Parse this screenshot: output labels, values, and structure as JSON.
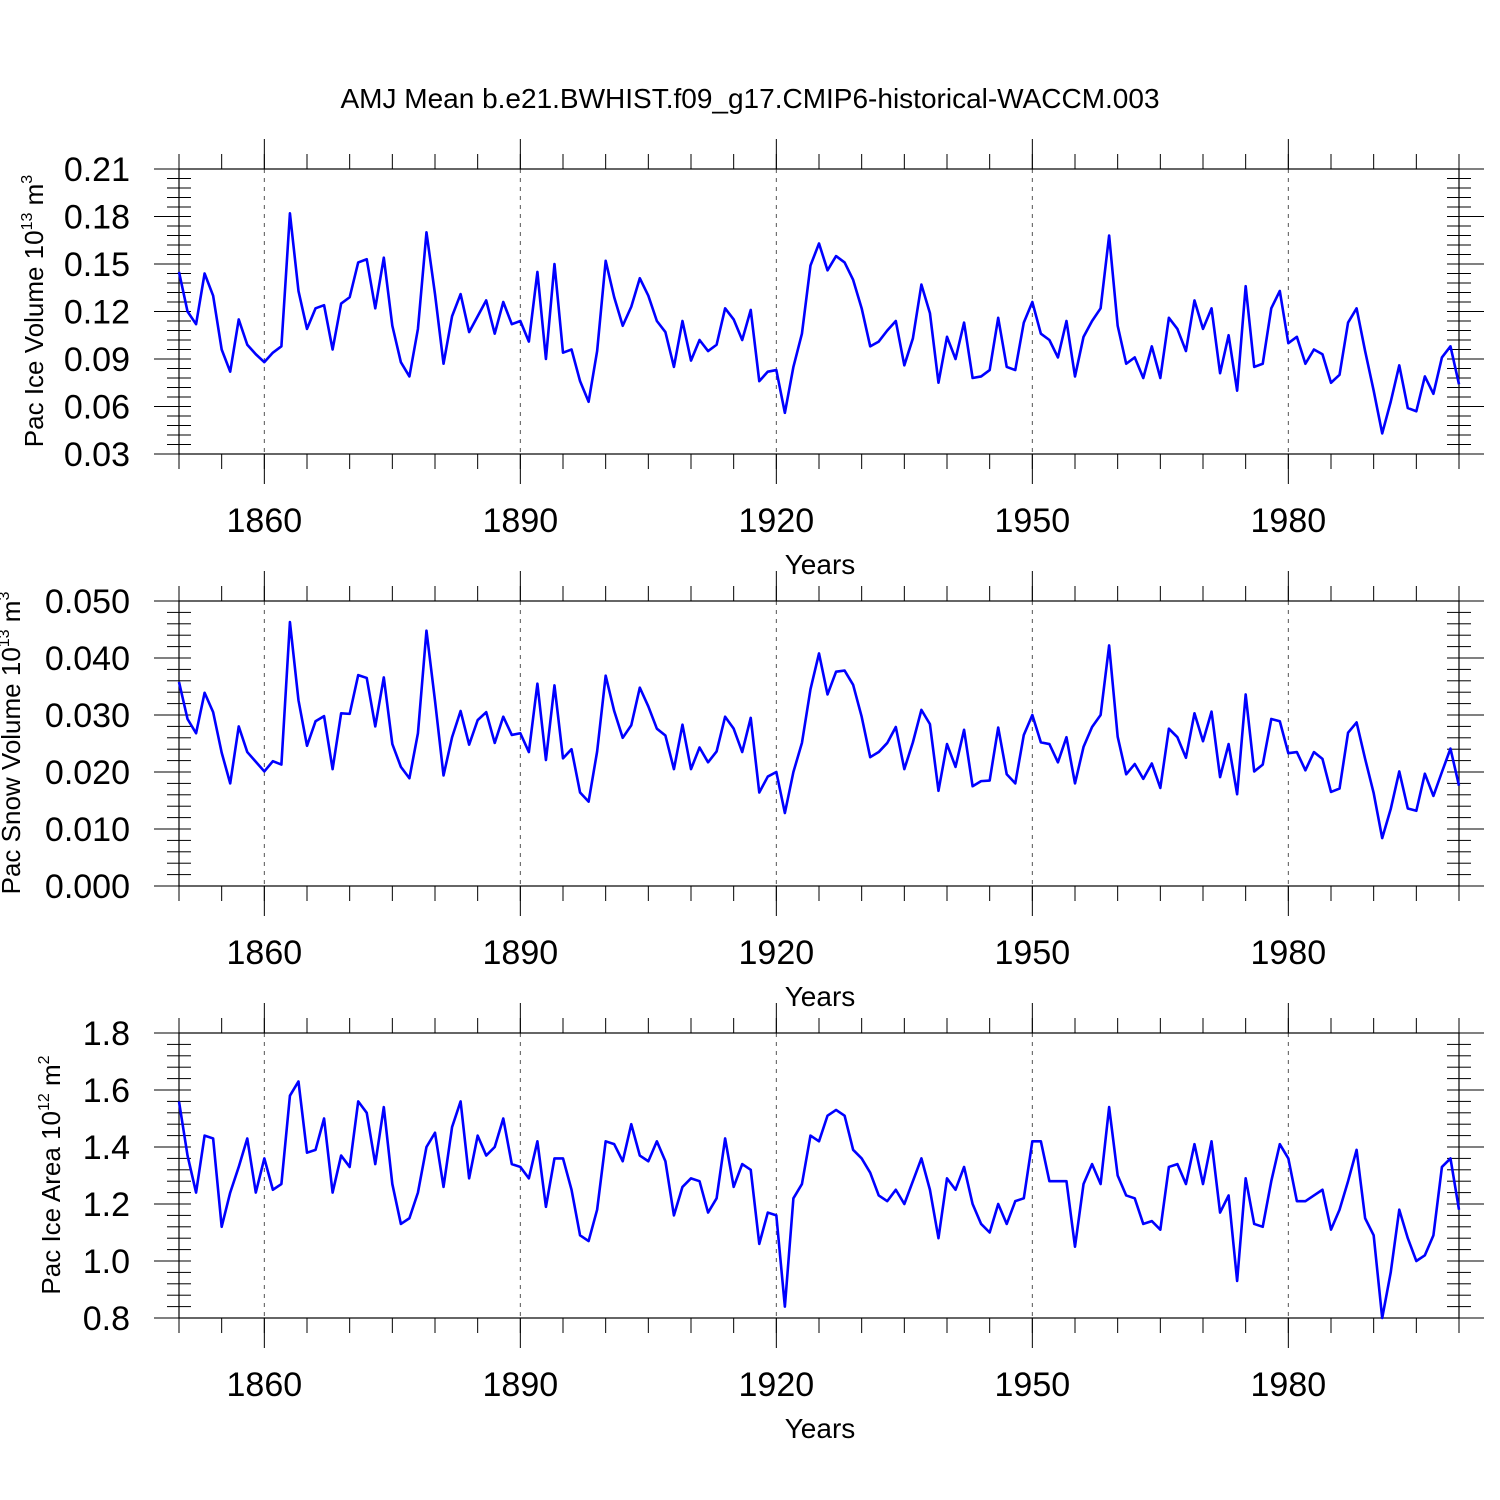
{
  "figure_title": "AMJ Mean b.e21.BWHIST.f09_g17.CMIP6-historical-WACCM.003",
  "line_color": "#0000ff",
  "chart_data": [
    {
      "type": "line",
      "ylabel": "Pac Ice Volume 10",
      "ylabel_sup1": "13",
      "ylabel_mid": " m",
      "ylabel_sup2": "3",
      "xlabel": "Years",
      "xlim": [
        1850,
        2000
      ],
      "ylim": [
        0.03,
        0.21
      ],
      "x_ticks": [
        "1860",
        "1890",
        "1920",
        "1950",
        "1980"
      ],
      "y_ticks": [
        "0.03",
        "0.06",
        "0.09",
        "0.12",
        "0.15",
        "0.18",
        "0.21"
      ],
      "x_start": 1850,
      "values": [
        0.145,
        0.12,
        0.112,
        0.144,
        0.13,
        0.096,
        0.082,
        0.115,
        0.099,
        0.093,
        0.088,
        0.094,
        0.098,
        0.182,
        0.133,
        0.109,
        0.122,
        0.124,
        0.096,
        0.125,
        0.129,
        0.151,
        0.153,
        0.122,
        0.154,
        0.111,
        0.088,
        0.079,
        0.109,
        0.17,
        0.131,
        0.087,
        0.117,
        0.131,
        0.107,
        0.117,
        0.127,
        0.106,
        0.126,
        0.112,
        0.114,
        0.101,
        0.145,
        0.09,
        0.15,
        0.094,
        0.096,
        0.076,
        0.063,
        0.095,
        0.152,
        0.129,
        0.111,
        0.123,
        0.141,
        0.13,
        0.114,
        0.107,
        0.085,
        0.114,
        0.089,
        0.102,
        0.095,
        0.099,
        0.122,
        0.115,
        0.102,
        0.121,
        0.076,
        0.082,
        0.083,
        0.056,
        0.085,
        0.106,
        0.149,
        0.163,
        0.146,
        0.155,
        0.151,
        0.14,
        0.122,
        0.098,
        0.101,
        0.108,
        0.114,
        0.086,
        0.103,
        0.137,
        0.119,
        0.075,
        0.104,
        0.09,
        0.113,
        0.078,
        0.079,
        0.083,
        0.116,
        0.085,
        0.083,
        0.113,
        0.126,
        0.106,
        0.102,
        0.091,
        0.114,
        0.079,
        0.104,
        0.114,
        0.122,
        0.168,
        0.111,
        0.087,
        0.091,
        0.078,
        0.098,
        0.078,
        0.116,
        0.109,
        0.095,
        0.127,
        0.109,
        0.122,
        0.081,
        0.105,
        0.07,
        0.136,
        0.085,
        0.087,
        0.122,
        0.133,
        0.1,
        0.104,
        0.087,
        0.096,
        0.093,
        0.075,
        0.08,
        0.113,
        0.122,
        0.095,
        0.07,
        0.043,
        0.063,
        0.086,
        0.059,
        0.057,
        0.079,
        0.068,
        0.091,
        0.098,
        0.074
      ]
    },
    {
      "type": "line",
      "ylabel": "Pac Snow Volume 10",
      "ylabel_sup1": "13",
      "ylabel_mid": " m",
      "ylabel_sup2": "3",
      "xlabel": "Years",
      "xlim": [
        1850,
        2000
      ],
      "ylim": [
        0.0,
        0.05
      ],
      "x_ticks": [
        "1860",
        "1890",
        "1920",
        "1950",
        "1980"
      ],
      "y_ticks": [
        "0.000",
        "0.010",
        "0.020",
        "0.030",
        "0.040",
        "0.050"
      ],
      "x_start": 1850,
      "values": [
        0.0358,
        0.0293,
        0.0268,
        0.0339,
        0.0305,
        0.0234,
        0.018,
        0.028,
        0.0235,
        0.0218,
        0.0201,
        0.0219,
        0.0213,
        0.0463,
        0.0326,
        0.0246,
        0.0289,
        0.0298,
        0.0205,
        0.0303,
        0.0302,
        0.037,
        0.0365,
        0.028,
        0.0366,
        0.0249,
        0.0209,
        0.0189,
        0.0268,
        0.0448,
        0.0325,
        0.0194,
        0.0261,
        0.0307,
        0.0248,
        0.0291,
        0.0305,
        0.0251,
        0.0297,
        0.0265,
        0.0268,
        0.0235,
        0.0355,
        0.0221,
        0.0352,
        0.0224,
        0.024,
        0.0164,
        0.0148,
        0.0236,
        0.0369,
        0.0307,
        0.026,
        0.0282,
        0.0348,
        0.0315,
        0.0276,
        0.0264,
        0.0205,
        0.0283,
        0.0205,
        0.0243,
        0.0217,
        0.0236,
        0.0297,
        0.0276,
        0.0235,
        0.0295,
        0.0164,
        0.0192,
        0.02,
        0.0128,
        0.02,
        0.0251,
        0.0345,
        0.0408,
        0.0336,
        0.0376,
        0.0378,
        0.0353,
        0.0297,
        0.0226,
        0.0235,
        0.0251,
        0.0279,
        0.0205,
        0.0252,
        0.0309,
        0.0284,
        0.0167,
        0.0249,
        0.0209,
        0.0274,
        0.0175,
        0.0184,
        0.0185,
        0.0278,
        0.0196,
        0.018,
        0.0265,
        0.03,
        0.0252,
        0.0249,
        0.0217,
        0.0261,
        0.018,
        0.0244,
        0.0279,
        0.03,
        0.0422,
        0.0262,
        0.0196,
        0.0214,
        0.0188,
        0.0215,
        0.0172,
        0.0276,
        0.0261,
        0.0225,
        0.0303,
        0.0254,
        0.0306,
        0.0191,
        0.0249,
        0.0161,
        0.0336,
        0.0201,
        0.0213,
        0.0293,
        0.0289,
        0.0233,
        0.0235,
        0.0203,
        0.0235,
        0.0223,
        0.0165,
        0.0171,
        0.0269,
        0.0287,
        0.0223,
        0.0163,
        0.0084,
        0.0135,
        0.0201,
        0.0136,
        0.0132,
        0.0197,
        0.0158,
        0.02,
        0.0241,
        0.0176
      ]
    },
    {
      "type": "line",
      "ylabel": "Pac Ice Area 10",
      "ylabel_sup1": "12",
      "ylabel_mid": " m",
      "ylabel_sup2": "2",
      "xlabel": "Years",
      "xlim": [
        1850,
        2000
      ],
      "ylim": [
        0.8,
        1.8
      ],
      "x_ticks": [
        "1860",
        "1890",
        "1920",
        "1950",
        "1980"
      ],
      "y_ticks": [
        "0.8",
        "1.0",
        "1.2",
        "1.4",
        "1.6",
        "1.8"
      ],
      "x_start": 1850,
      "values": [
        1.56,
        1.37,
        1.24,
        1.44,
        1.43,
        1.12,
        1.24,
        1.33,
        1.43,
        1.24,
        1.36,
        1.25,
        1.27,
        1.58,
        1.63,
        1.38,
        1.39,
        1.5,
        1.24,
        1.37,
        1.33,
        1.56,
        1.52,
        1.34,
        1.54,
        1.27,
        1.13,
        1.15,
        1.24,
        1.4,
        1.45,
        1.26,
        1.47,
        1.56,
        1.29,
        1.44,
        1.37,
        1.4,
        1.5,
        1.34,
        1.33,
        1.29,
        1.42,
        1.19,
        1.36,
        1.36,
        1.25,
        1.09,
        1.07,
        1.18,
        1.42,
        1.41,
        1.35,
        1.48,
        1.37,
        1.35,
        1.42,
        1.35,
        1.16,
        1.26,
        1.29,
        1.28,
        1.17,
        1.22,
        1.43,
        1.26,
        1.34,
        1.32,
        1.06,
        1.17,
        1.16,
        0.84,
        1.22,
        1.27,
        1.44,
        1.42,
        1.51,
        1.53,
        1.51,
        1.39,
        1.36,
        1.31,
        1.23,
        1.21,
        1.25,
        1.2,
        1.28,
        1.36,
        1.25,
        1.08,
        1.29,
        1.25,
        1.33,
        1.2,
        1.13,
        1.1,
        1.2,
        1.13,
        1.21,
        1.22,
        1.42,
        1.42,
        1.28,
        1.28,
        1.28,
        1.05,
        1.27,
        1.34,
        1.27,
        1.54,
        1.3,
        1.23,
        1.22,
        1.13,
        1.14,
        1.11,
        1.33,
        1.34,
        1.27,
        1.41,
        1.27,
        1.42,
        1.17,
        1.23,
        0.93,
        1.29,
        1.13,
        1.12,
        1.28,
        1.41,
        1.36,
        1.21,
        1.21,
        1.23,
        1.25,
        1.11,
        1.18,
        1.28,
        1.39,
        1.15,
        1.09,
        0.8,
        0.96,
        1.18,
        1.08,
        1.0,
        1.02,
        1.09,
        1.33,
        1.36,
        1.18
      ]
    }
  ]
}
